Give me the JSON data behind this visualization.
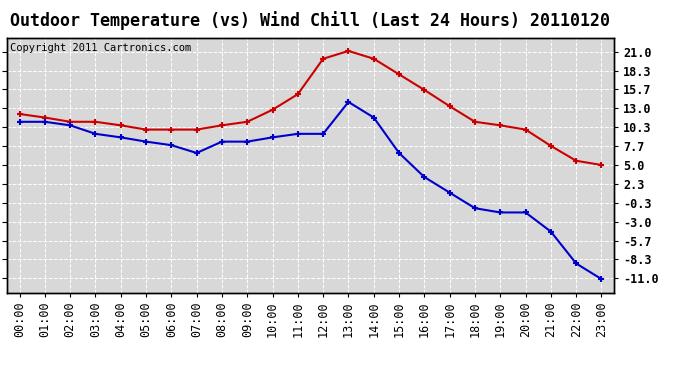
{
  "title": "Outdoor Temperature (vs) Wind Chill (Last 24 Hours) 20110120",
  "copyright": "Copyright 2011 Cartronics.com",
  "hours": [
    "00:00",
    "01:00",
    "02:00",
    "03:00",
    "04:00",
    "05:00",
    "06:00",
    "07:00",
    "08:00",
    "09:00",
    "10:00",
    "11:00",
    "12:00",
    "13:00",
    "14:00",
    "15:00",
    "16:00",
    "17:00",
    "18:00",
    "19:00",
    "20:00",
    "21:00",
    "22:00",
    "23:00"
  ],
  "outdoor_temp": [
    12.2,
    11.7,
    11.1,
    11.1,
    10.6,
    10.0,
    10.0,
    10.0,
    10.6,
    11.1,
    12.8,
    15.0,
    20.0,
    21.1,
    20.0,
    17.8,
    15.6,
    13.3,
    11.1,
    10.6,
    10.0,
    7.7,
    5.6,
    5.0
  ],
  "wind_chill": [
    11.1,
    11.1,
    10.6,
    9.4,
    8.9,
    8.3,
    7.8,
    6.7,
    8.3,
    8.3,
    8.9,
    9.4,
    9.4,
    13.9,
    11.7,
    6.7,
    3.3,
    1.1,
    -1.1,
    -1.7,
    -1.7,
    -4.4,
    -8.9,
    -11.1
  ],
  "yticks": [
    21.0,
    18.3,
    15.7,
    13.0,
    10.3,
    7.7,
    5.0,
    2.3,
    -0.3,
    -3.0,
    -5.7,
    -8.3,
    -11.0
  ],
  "ymin": -13.0,
  "ymax": 23.0,
  "outdoor_color": "#cc0000",
  "wind_chill_color": "#0000cc",
  "bg_color": "#ffffff",
  "plot_bg_color": "#d8d8d8",
  "grid_color": "#ffffff",
  "title_fontsize": 12,
  "copyright_fontsize": 7.5,
  "tick_fontsize": 8.5
}
